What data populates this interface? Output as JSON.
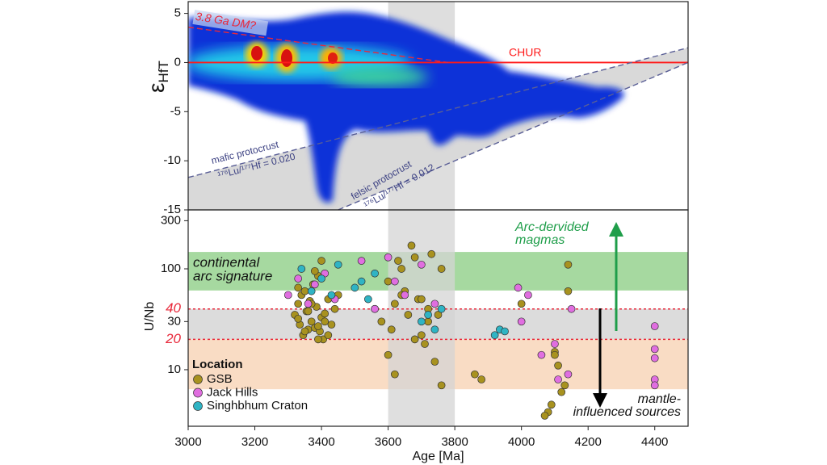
{
  "chart_data": [
    {
      "type": "density",
      "ylabel": {
        "main": "ε",
        "sub": "HfT"
      },
      "xlim": [
        3000,
        4500
      ],
      "ylim": [
        -15,
        6.2
      ],
      "yticks": [
        5,
        0,
        -5,
        -10,
        -15
      ],
      "xband": [
        3600,
        3800
      ],
      "series": [
        {
          "name": "CHUR",
          "color": "#ff1a1a",
          "dash": false,
          "x": [
            3000,
            4500
          ],
          "values": [
            0,
            0
          ]
        },
        {
          "name": "3.8 Ga DM?",
          "color": "#e8283a",
          "dash": true,
          "x": [
            3000,
            3780
          ],
          "values": [
            3.6,
            0
          ]
        },
        {
          "name": "mafic protocrust",
          "color": "#5a5f96",
          "dash": true,
          "x": [
            3000,
            4500
          ],
          "values": [
            -11.7,
            1.5
          ]
        },
        {
          "name": "felsic protocrust",
          "color": "#5a5f96",
          "dash": true,
          "x": [
            3450,
            4500
          ],
          "values": [
            -15,
            0
          ]
        }
      ],
      "annotations": [
        "¹⁷⁶Lu/¹⁷⁷Hf = 0.020",
        "¹⁷⁶Lu/¹⁷⁷Hf = 0.012"
      ]
    },
    {
      "type": "scatter",
      "ylabel": "U/Nb",
      "xlabel": "Age [Ma]",
      "xlim": [
        3000,
        4500
      ],
      "xticks": [
        3000,
        3200,
        3400,
        3600,
        3800,
        4000,
        4200,
        4400
      ],
      "log_y": true,
      "ylim": [
        2.75,
        384
      ],
      "yticks": [
        10,
        30,
        100,
        300
      ],
      "ref_lines": [
        20,
        40
      ],
      "ref_color": "#e8283a",
      "xband": [
        3600,
        3800
      ],
      "bands": [
        {
          "range": [
            61,
            147
          ],
          "color": "#a6d9a0"
        },
        {
          "range": [
            20,
            40
          ],
          "color": "#dcdcdc"
        },
        {
          "range": [
            6.4,
            20
          ],
          "color": "#f9dcc4"
        }
      ],
      "band_label": [
        "continental",
        "arc signature"
      ],
      "arc_label": [
        "Arc-dervided",
        "magmas"
      ],
      "mantle_label": [
        "mantle-",
        "influenced sources"
      ],
      "legend_title": "Location",
      "series": [
        {
          "name": "GSB",
          "color": "#a8921f",
          "x": [
            3320,
            3330,
            3335,
            3340,
            3345,
            3350,
            3355,
            3360,
            3365,
            3370,
            3375,
            3380,
            3385,
            3390,
            3395,
            3400,
            3405,
            3410,
            3420,
            3430,
            3440,
            3450,
            3330,
            3350,
            3370,
            3390,
            3410,
            3330,
            3360,
            3390,
            3420,
            3380,
            3400,
            3560,
            3580,
            3600,
            3610,
            3620,
            3630,
            3640,
            3650,
            3660,
            3670,
            3680,
            3690,
            3700,
            3710,
            3720,
            3730,
            3740,
            3750,
            3760,
            3600,
            3640,
            3680,
            3720,
            3760,
            3620,
            3700,
            3860,
            3880,
            4000,
            4080,
            4090,
            4100,
            4110,
            4120,
            4130,
            4140,
            4070,
            4100,
            4140
          ],
          "values": [
            35,
            45,
            28,
            55,
            22,
            60,
            38,
            25,
            48,
            30,
            70,
            26,
            42,
            85,
            24,
            33,
            20,
            36,
            50,
            28,
            40,
            55,
            32,
            24,
            45,
            20,
            30,
            65,
            38,
            27,
            22,
            95,
            120,
            40,
            30,
            14,
            25,
            45,
            120,
            100,
            60,
            35,
            170,
            130,
            50,
            22,
            18,
            30,
            140,
            12,
            35,
            7,
            75,
            55,
            20,
            40,
            100,
            9,
            50,
            9,
            8,
            45,
            3.8,
            4.5,
            15,
            11,
            6,
            7,
            110,
            3.5,
            14,
            60
          ]
        },
        {
          "name": "Jack Hills",
          "color": "#e06ee0",
          "x": [
            3300,
            3330,
            3360,
            3380,
            3410,
            3440,
            3520,
            3560,
            3600,
            3620,
            3650,
            3700,
            3740,
            3990,
            4000,
            4020,
            4060,
            4100,
            4110,
            4140,
            4150,
            4400,
            4400,
            4400,
            4400,
            4400
          ],
          "values": [
            55,
            80,
            45,
            70,
            90,
            50,
            120,
            40,
            130,
            75,
            55,
            110,
            45,
            65,
            30,
            55,
            14,
            18,
            8,
            9,
            40,
            27,
            16,
            13,
            8,
            7
          ]
        },
        {
          "name": "Singhbhum Craton",
          "color": "#2fb4c4",
          "x": [
            3340,
            3370,
            3400,
            3430,
            3450,
            3500,
            3520,
            3540,
            3560,
            3700,
            3720,
            3740,
            3760,
            3920,
            3935,
            3950
          ],
          "values": [
            100,
            60,
            80,
            55,
            110,
            65,
            75,
            50,
            90,
            30,
            35,
            25,
            40,
            22,
            25,
            24
          ]
        }
      ]
    }
  ]
}
